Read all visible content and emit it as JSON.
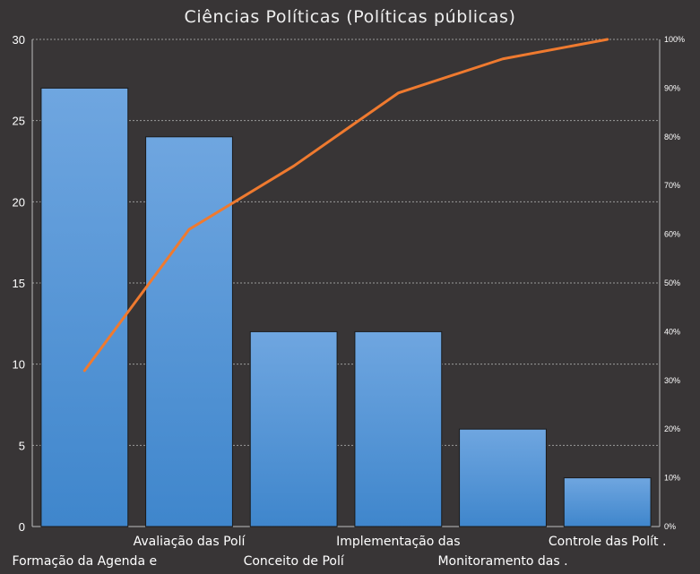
{
  "chart_data": {
    "type": "bar",
    "title": "Ciências Políticas (Políticas públicas)",
    "categories": [
      "Formação da Agenda e",
      "Avaliação das Polí",
      "Conceito de Polí",
      "Implementação das",
      "Monitoramento  das .",
      "Controle das Polít ."
    ],
    "series": [
      {
        "type": "bar",
        "values": [
          27,
          24,
          12,
          12,
          6,
          3
        ]
      },
      {
        "type": "line",
        "axis": "right",
        "values": [
          0.32,
          0.61,
          0.74,
          0.89,
          0.96,
          1.0
        ]
      }
    ],
    "ylim": [
      0,
      30
    ],
    "y_ticks": [
      "0",
      "5",
      "10",
      "15",
      "20",
      "25",
      "30"
    ],
    "y2lim": [
      0,
      1
    ],
    "y2_ticks": [
      "0%",
      "10%",
      "20%",
      "30%",
      "40%",
      "50%",
      "60%",
      "70%",
      "80%",
      "90%",
      "100%"
    ],
    "colors": {
      "bar_top": "#6fa6e0",
      "bar_bottom": "#3f86cc",
      "line": "#ef7a2f",
      "grid": "#9a9a9a",
      "background": "#383536"
    },
    "grid": true
  }
}
